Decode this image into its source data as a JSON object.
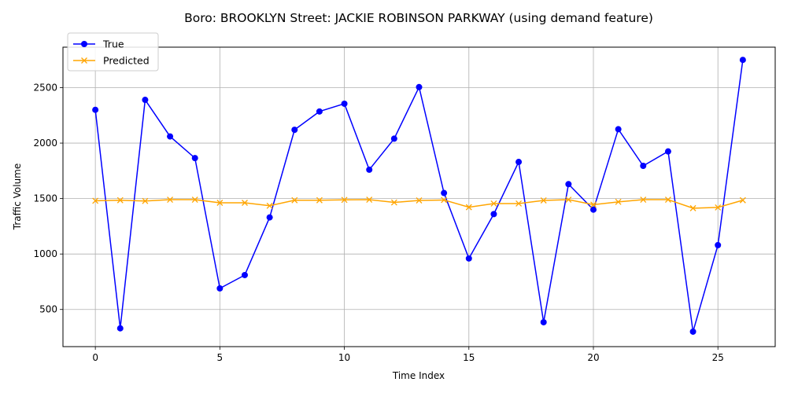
{
  "chart_data": {
    "type": "line",
    "title": "Boro: BROOKLYN Street: JACKIE ROBINSON PARKWAY (using demand feature)",
    "xlabel": "Time Index",
    "ylabel": "Traffic Volume",
    "xlim": [
      -1.3,
      27.3
    ],
    "ylim": [
      165,
      2865
    ],
    "xticks": [
      0,
      5,
      10,
      15,
      20,
      25
    ],
    "yticks": [
      500,
      1000,
      1500,
      2000,
      2500
    ],
    "grid": true,
    "legend_position": "top-left",
    "x": [
      0,
      1,
      2,
      3,
      4,
      5,
      6,
      7,
      8,
      9,
      10,
      11,
      12,
      13,
      14,
      15,
      16,
      17,
      18,
      19,
      20,
      21,
      22,
      23,
      24,
      25,
      26
    ],
    "series": [
      {
        "name": "True",
        "color": "#0000ff",
        "marker": "circle",
        "values": [
          2300,
          330,
          2390,
          2060,
          1865,
          690,
          810,
          1330,
          2120,
          2285,
          2355,
          1760,
          2040,
          2505,
          1550,
          960,
          1360,
          1830,
          385,
          1630,
          1400,
          2125,
          1795,
          1925,
          300,
          1080,
          2750
        ]
      },
      {
        "name": "Predicted",
        "color": "#ffa500",
        "marker": "x",
        "values": [
          1480,
          1485,
          1478,
          1490,
          1490,
          1462,
          1462,
          1435,
          1485,
          1485,
          1488,
          1490,
          1465,
          1483,
          1487,
          1422,
          1455,
          1455,
          1483,
          1490,
          1445,
          1470,
          1490,
          1490,
          1413,
          1420,
          1485
        ]
      }
    ]
  }
}
